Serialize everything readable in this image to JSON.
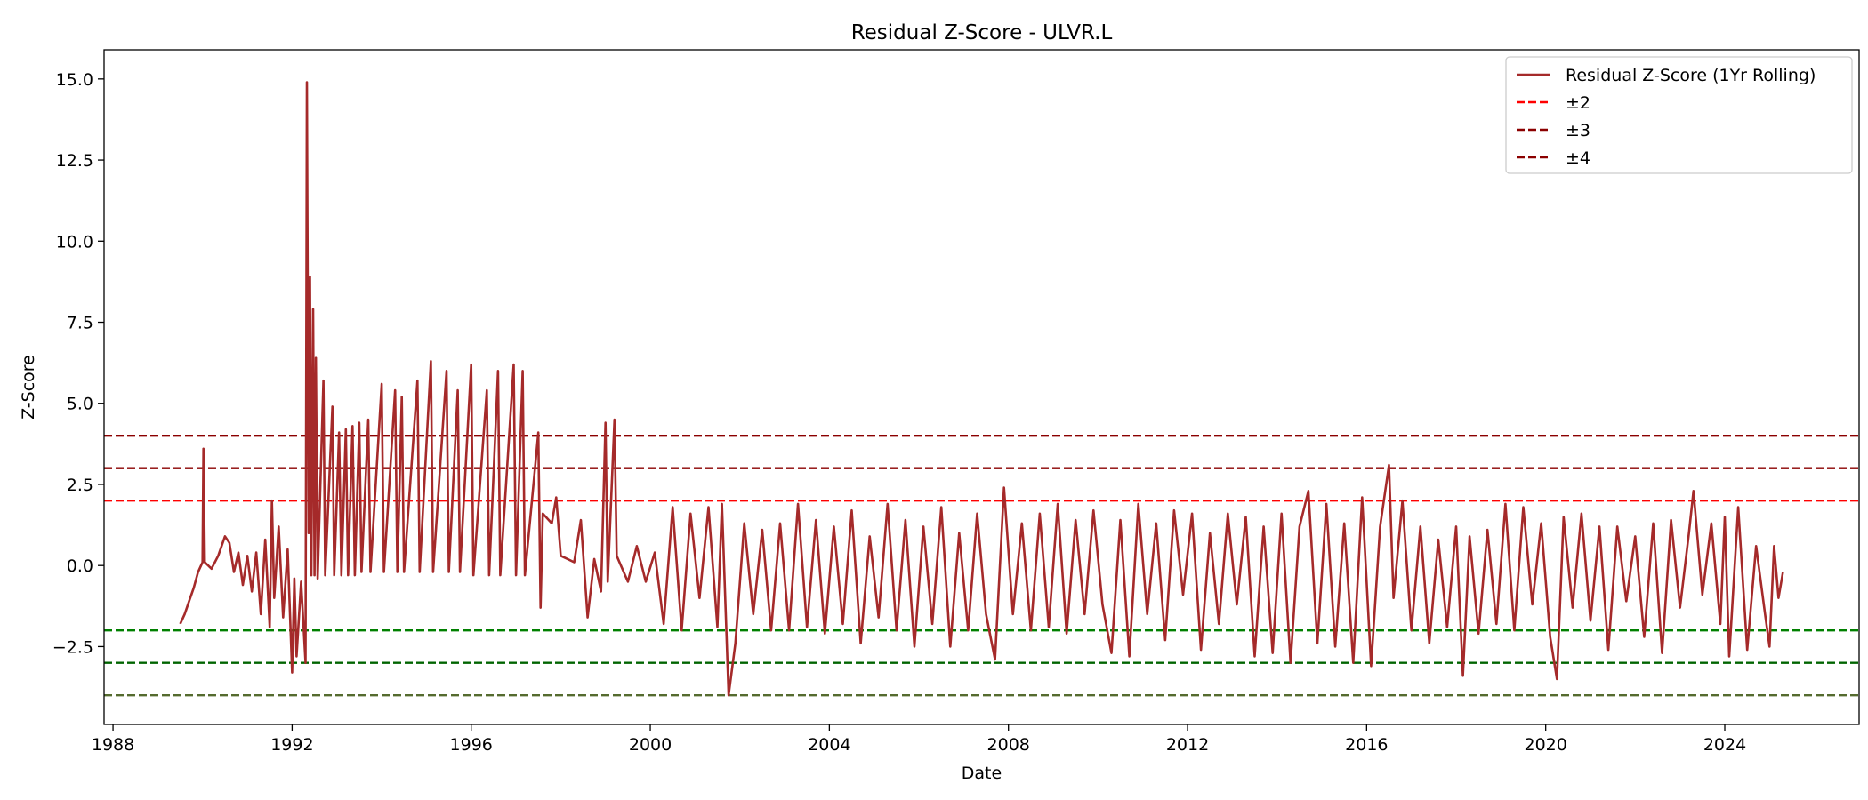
{
  "chart_data": {
    "type": "line",
    "title": "Residual Z-Score - ULVR.L",
    "xlabel": "Date",
    "ylabel": "Z-Score",
    "xlim": [
      1987.8,
      2027.0
    ],
    "ylim": [
      -4.9,
      15.9
    ],
    "x_ticks": [
      1988,
      1992,
      1996,
      2000,
      2004,
      2008,
      2012,
      2016,
      2020,
      2024
    ],
    "y_ticks": [
      -2.5,
      0.0,
      2.5,
      5.0,
      7.5,
      10.0,
      12.5,
      15.0
    ],
    "y_tick_labels": [
      "−2.5",
      "0.0",
      "2.5",
      "5.0",
      "7.5",
      "10.0",
      "12.5",
      "15.0"
    ],
    "grid": false,
    "legend_position": "top-right",
    "legend": [
      {
        "label": "Residual Z-Score (1Yr Rolling)",
        "color": "#a52a2a",
        "style": "solid"
      },
      {
        "label": "±2",
        "color": "#ff0000",
        "style": "dashed"
      },
      {
        "label": "±3",
        "color": "#8b0000",
        "style": "dashed"
      },
      {
        "label": "±4",
        "color": "#8b0000",
        "style": "dashed"
      }
    ],
    "reference_lines": [
      {
        "y": 4,
        "color": "#8b0000"
      },
      {
        "y": 3,
        "color": "#8b0000"
      },
      {
        "y": 2,
        "color": "#ff0000"
      },
      {
        "y": -2,
        "color": "#008000"
      },
      {
        "y": -3,
        "color": "#006400"
      },
      {
        "y": -4,
        "color": "#556b2f"
      }
    ],
    "series": [
      {
        "name": "Residual Z-Score (1Yr Rolling)",
        "color": "#a52a2a",
        "points": [
          [
            1989.5,
            -1.8
          ],
          [
            1989.6,
            -1.5
          ],
          [
            1989.7,
            -1.1
          ],
          [
            1989.8,
            -0.7
          ],
          [
            1989.9,
            -0.2
          ],
          [
            1990.0,
            0.1
          ],
          [
            1990.02,
            3.6
          ],
          [
            1990.05,
            0.1
          ],
          [
            1990.2,
            -0.1
          ],
          [
            1990.35,
            0.3
          ],
          [
            1990.5,
            0.9
          ],
          [
            1990.6,
            0.7
          ],
          [
            1990.7,
            -0.2
          ],
          [
            1990.8,
            0.4
          ],
          [
            1990.9,
            -0.6
          ],
          [
            1991.0,
            0.3
          ],
          [
            1991.1,
            -0.8
          ],
          [
            1991.2,
            0.4
          ],
          [
            1991.3,
            -1.5
          ],
          [
            1991.4,
            0.8
          ],
          [
            1991.5,
            -1.9
          ],
          [
            1991.55,
            2.0
          ],
          [
            1991.6,
            -1.0
          ],
          [
            1991.7,
            1.2
          ],
          [
            1991.8,
            -1.6
          ],
          [
            1991.9,
            0.5
          ],
          [
            1992.0,
            -3.3
          ],
          [
            1992.05,
            -0.4
          ],
          [
            1992.1,
            -2.8
          ],
          [
            1992.2,
            -0.5
          ],
          [
            1992.3,
            -3.0
          ],
          [
            1992.33,
            14.9
          ],
          [
            1992.37,
            1.0
          ],
          [
            1992.4,
            8.9
          ],
          [
            1992.43,
            -0.3
          ],
          [
            1992.47,
            7.9
          ],
          [
            1992.5,
            -0.3
          ],
          [
            1992.53,
            6.4
          ],
          [
            1992.57,
            -0.4
          ],
          [
            1992.7,
            5.7
          ],
          [
            1992.74,
            -0.3
          ],
          [
            1992.9,
            4.9
          ],
          [
            1992.94,
            -0.3
          ],
          [
            1993.05,
            4.1
          ],
          [
            1993.1,
            -0.3
          ],
          [
            1993.2,
            4.2
          ],
          [
            1993.25,
            -0.3
          ],
          [
            1993.35,
            4.3
          ],
          [
            1993.4,
            -0.3
          ],
          [
            1993.5,
            4.4
          ],
          [
            1993.55,
            -0.2
          ],
          [
            1993.7,
            4.5
          ],
          [
            1993.75,
            -0.2
          ],
          [
            1994.0,
            5.6
          ],
          [
            1994.05,
            -0.2
          ],
          [
            1994.3,
            5.4
          ],
          [
            1994.35,
            -0.2
          ],
          [
            1994.45,
            5.2
          ],
          [
            1994.5,
            -0.2
          ],
          [
            1994.8,
            5.7
          ],
          [
            1994.85,
            -0.2
          ],
          [
            1995.1,
            6.3
          ],
          [
            1995.15,
            -0.2
          ],
          [
            1995.45,
            6.0
          ],
          [
            1995.5,
            -0.2
          ],
          [
            1995.7,
            5.4
          ],
          [
            1995.75,
            -0.2
          ],
          [
            1996.0,
            6.2
          ],
          [
            1996.05,
            -0.3
          ],
          [
            1996.35,
            5.4
          ],
          [
            1996.4,
            -0.3
          ],
          [
            1996.6,
            6.0
          ],
          [
            1996.65,
            -0.3
          ],
          [
            1996.95,
            6.2
          ],
          [
            1997.0,
            -0.3
          ],
          [
            1997.15,
            6.0
          ],
          [
            1997.2,
            -0.3
          ],
          [
            1997.5,
            4.1
          ],
          [
            1997.55,
            -1.3
          ],
          [
            1997.6,
            1.6
          ],
          [
            1997.8,
            1.3
          ],
          [
            1997.9,
            2.1
          ],
          [
            1998.0,
            0.3
          ],
          [
            1998.3,
            0.1
          ],
          [
            1998.45,
            1.4
          ],
          [
            1998.6,
            -1.6
          ],
          [
            1998.75,
            0.2
          ],
          [
            1998.9,
            -0.8
          ],
          [
            1999.0,
            4.4
          ],
          [
            1999.05,
            -0.5
          ],
          [
            1999.2,
            4.5
          ],
          [
            1999.25,
            0.3
          ],
          [
            1999.5,
            -0.5
          ],
          [
            1999.7,
            0.6
          ],
          [
            1999.9,
            -0.5
          ],
          [
            2000.1,
            0.4
          ],
          [
            2000.3,
            -1.8
          ],
          [
            2000.5,
            1.8
          ],
          [
            2000.7,
            -2.0
          ],
          [
            2000.9,
            1.6
          ],
          [
            2001.1,
            -1.0
          ],
          [
            2001.3,
            1.8
          ],
          [
            2001.5,
            -1.9
          ],
          [
            2001.6,
            1.9
          ],
          [
            2001.75,
            -4.0
          ],
          [
            2001.9,
            -2.4
          ],
          [
            2002.1,
            1.3
          ],
          [
            2002.3,
            -1.5
          ],
          [
            2002.5,
            1.1
          ],
          [
            2002.7,
            -2.0
          ],
          [
            2002.9,
            1.3
          ],
          [
            2003.1,
            -2.0
          ],
          [
            2003.3,
            1.9
          ],
          [
            2003.5,
            -1.9
          ],
          [
            2003.7,
            1.4
          ],
          [
            2003.9,
            -2.1
          ],
          [
            2004.1,
            1.2
          ],
          [
            2004.3,
            -1.8
          ],
          [
            2004.5,
            1.7
          ],
          [
            2004.7,
            -2.4
          ],
          [
            2004.9,
            0.9
          ],
          [
            2005.1,
            -1.6
          ],
          [
            2005.3,
            1.9
          ],
          [
            2005.5,
            -2.0
          ],
          [
            2005.7,
            1.4
          ],
          [
            2005.9,
            -2.5
          ],
          [
            2006.1,
            1.2
          ],
          [
            2006.3,
            -1.8
          ],
          [
            2006.5,
            1.8
          ],
          [
            2006.7,
            -2.5
          ],
          [
            2006.9,
            1.0
          ],
          [
            2007.1,
            -2.0
          ],
          [
            2007.3,
            1.6
          ],
          [
            2007.5,
            -1.5
          ],
          [
            2007.7,
            -2.9
          ],
          [
            2007.9,
            2.4
          ],
          [
            2008.1,
            -1.5
          ],
          [
            2008.3,
            1.3
          ],
          [
            2008.5,
            -2.0
          ],
          [
            2008.7,
            1.6
          ],
          [
            2008.9,
            -1.9
          ],
          [
            2009.1,
            1.9
          ],
          [
            2009.3,
            -2.1
          ],
          [
            2009.5,
            1.4
          ],
          [
            2009.7,
            -1.5
          ],
          [
            2009.9,
            1.7
          ],
          [
            2010.1,
            -1.2
          ],
          [
            2010.3,
            -2.7
          ],
          [
            2010.5,
            1.4
          ],
          [
            2010.7,
            -2.8
          ],
          [
            2010.9,
            1.9
          ],
          [
            2011.1,
            -1.5
          ],
          [
            2011.3,
            1.3
          ],
          [
            2011.5,
            -2.3
          ],
          [
            2011.7,
            1.7
          ],
          [
            2011.9,
            -0.9
          ],
          [
            2012.1,
            1.6
          ],
          [
            2012.3,
            -2.6
          ],
          [
            2012.5,
            1.0
          ],
          [
            2012.7,
            -1.8
          ],
          [
            2012.9,
            1.6
          ],
          [
            2013.1,
            -1.2
          ],
          [
            2013.3,
            1.5
          ],
          [
            2013.5,
            -2.8
          ],
          [
            2013.7,
            1.2
          ],
          [
            2013.9,
            -2.7
          ],
          [
            2014.1,
            1.6
          ],
          [
            2014.3,
            -3.0
          ],
          [
            2014.5,
            1.2
          ],
          [
            2014.7,
            2.3
          ],
          [
            2014.9,
            -2.4
          ],
          [
            2015.1,
            1.9
          ],
          [
            2015.3,
            -2.5
          ],
          [
            2015.5,
            1.3
          ],
          [
            2015.7,
            -3.0
          ],
          [
            2015.9,
            2.1
          ],
          [
            2016.1,
            -3.1
          ],
          [
            2016.3,
            1.2
          ],
          [
            2016.5,
            3.1
          ],
          [
            2016.6,
            -1.0
          ],
          [
            2016.8,
            2.0
          ],
          [
            2017.0,
            -2.0
          ],
          [
            2017.2,
            1.2
          ],
          [
            2017.4,
            -2.4
          ],
          [
            2017.6,
            0.8
          ],
          [
            2017.8,
            -1.9
          ],
          [
            2018.0,
            1.2
          ],
          [
            2018.15,
            -3.4
          ],
          [
            2018.3,
            0.9
          ],
          [
            2018.5,
            -2.1
          ],
          [
            2018.7,
            1.1
          ],
          [
            2018.9,
            -1.8
          ],
          [
            2019.1,
            1.9
          ],
          [
            2019.3,
            -2.0
          ],
          [
            2019.5,
            1.8
          ],
          [
            2019.7,
            -1.2
          ],
          [
            2019.9,
            1.3
          ],
          [
            2020.1,
            -2.2
          ],
          [
            2020.25,
            -3.5
          ],
          [
            2020.4,
            1.5
          ],
          [
            2020.6,
            -1.3
          ],
          [
            2020.8,
            1.6
          ],
          [
            2021.0,
            -1.7
          ],
          [
            2021.2,
            1.2
          ],
          [
            2021.4,
            -2.6
          ],
          [
            2021.6,
            1.2
          ],
          [
            2021.8,
            -1.1
          ],
          [
            2022.0,
            0.9
          ],
          [
            2022.2,
            -2.2
          ],
          [
            2022.4,
            1.3
          ],
          [
            2022.6,
            -2.7
          ],
          [
            2022.8,
            1.4
          ],
          [
            2023.0,
            -1.3
          ],
          [
            2023.2,
            1.0
          ],
          [
            2023.3,
            2.3
          ],
          [
            2023.5,
            -0.9
          ],
          [
            2023.7,
            1.3
          ],
          [
            2023.9,
            -1.8
          ],
          [
            2024.0,
            1.5
          ],
          [
            2024.1,
            -2.8
          ],
          [
            2024.3,
            1.8
          ],
          [
            2024.5,
            -2.6
          ],
          [
            2024.7,
            0.6
          ],
          [
            2024.9,
            -1.5
          ],
          [
            2025.0,
            -2.5
          ],
          [
            2025.1,
            0.6
          ],
          [
            2025.2,
            -1.0
          ],
          [
            2025.3,
            -0.2
          ]
        ]
      }
    ]
  }
}
